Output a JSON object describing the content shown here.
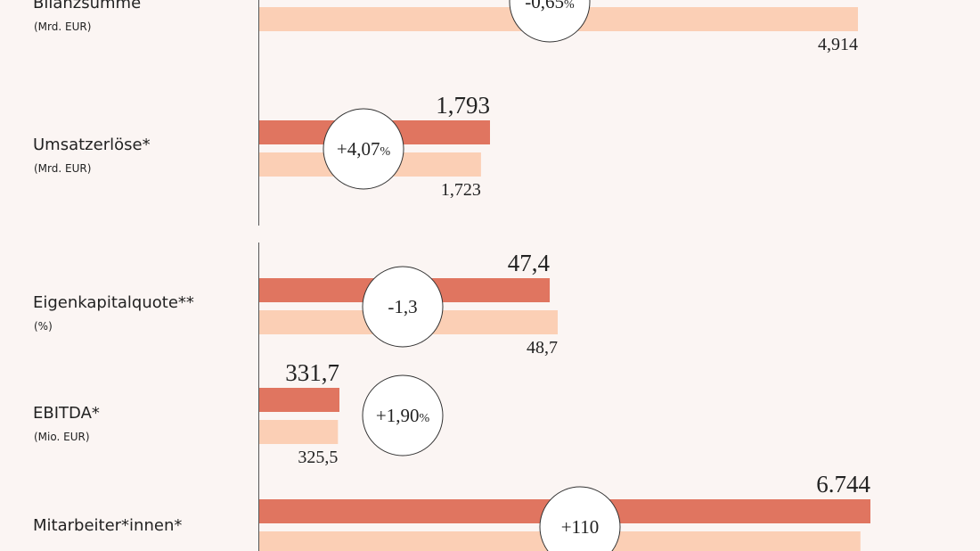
{
  "metrics": [
    {
      "label": "Bilanzsumme",
      "unit": "(Mrd. EUR)",
      "previous": {
        "value": 4.914,
        "label": "4,914"
      },
      "change": {
        "value": -0.65,
        "label": "-0,65",
        "unit": "%"
      }
    },
    {
      "label": "Umsatzerlöse*",
      "unit": "(Mrd. EUR)",
      "current": {
        "value": 1.793,
        "label": "1,793"
      },
      "previous": {
        "value": 1.723,
        "label": "1,723"
      },
      "change": {
        "value": 4.07,
        "label": "+4,07",
        "unit": "%"
      }
    },
    {
      "label": "Eigenkapitalquote**",
      "unit": "(%)",
      "current": {
        "value": 47.4,
        "label": "47,4"
      },
      "previous": {
        "value": 48.7,
        "label": "48,7"
      },
      "change": {
        "value": -1.3,
        "label": "-1,3"
      }
    },
    {
      "label": "EBITDA*",
      "unit": "(Mio. EUR)",
      "current": {
        "value": 331.7,
        "label": "331,7"
      },
      "previous": {
        "value": 325.5,
        "label": "325,5"
      },
      "change": {
        "value": 1.9,
        "label": "+1,90",
        "unit": "%"
      }
    },
    {
      "label": "Mitarbeiter*innen*",
      "current": {
        "value": 6744,
        "label": "6.744"
      },
      "previous": {
        "value": 6634
      },
      "change": {
        "value": 110,
        "label": "+110"
      }
    }
  ]
}
